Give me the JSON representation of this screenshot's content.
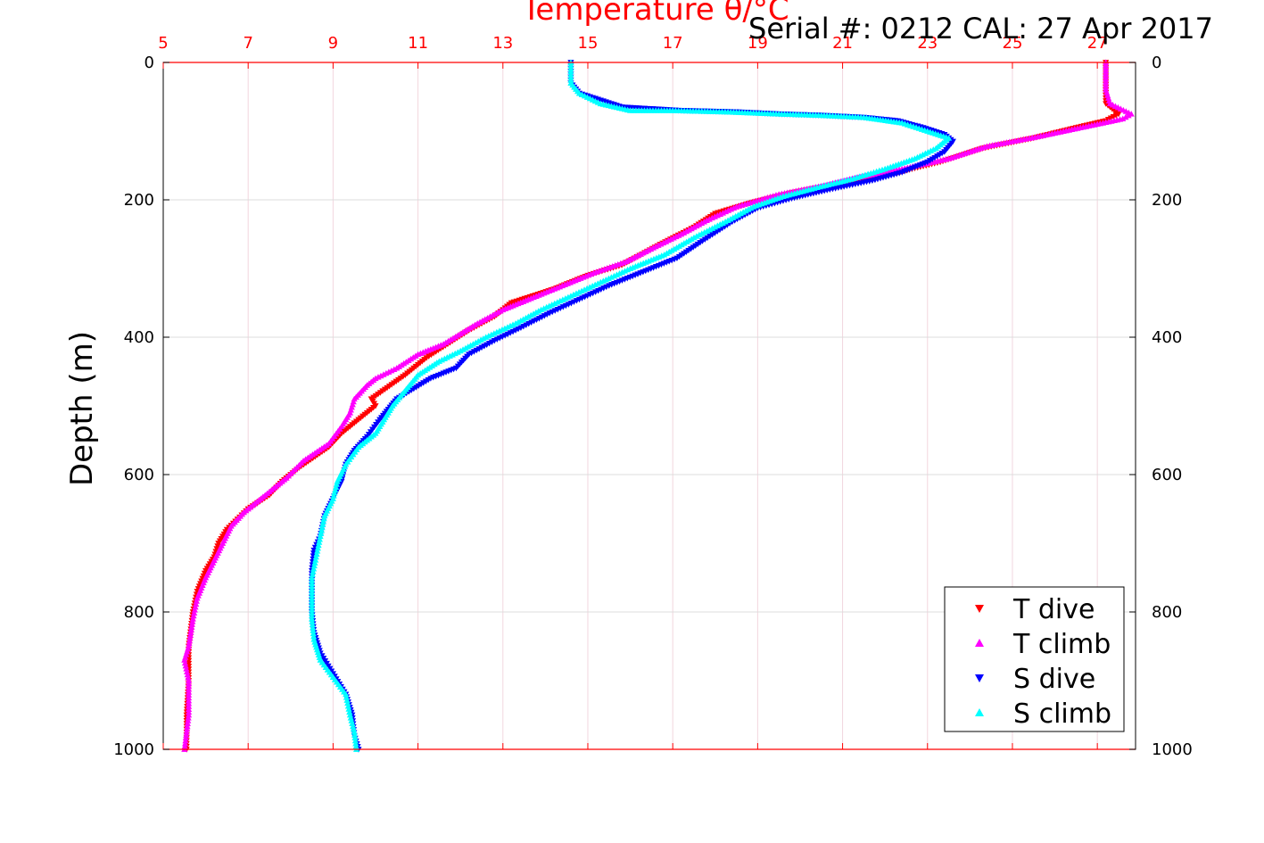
{
  "chart_data": {
    "type": "scatter",
    "title": "Temperature θ/°C",
    "annotation": "Serial #: 0212  CAL: 27 Apr 2017",
    "xlabel": "Temperature θ/°C",
    "ylabel": "Depth (m)",
    "xlim": [
      5,
      27.9
    ],
    "ylim": [
      1000,
      0
    ],
    "x_tick_labels": [
      "5",
      "7",
      "9",
      "11",
      "13",
      "15",
      "17",
      "19",
      "21",
      "23",
      "25",
      "27"
    ],
    "y_tick_labels": [
      "0",
      "200",
      "400",
      "600",
      "800",
      "1000"
    ],
    "grid": true,
    "legend_position": "bottom-right",
    "colors": {
      "temperature_axis": "#ff0000",
      "t_dive": "#ff0000",
      "t_climb": "#ff00ff",
      "s_dive": "#0000ff",
      "s_climb": "#00ffff"
    },
    "series": [
      {
        "name": "T dive",
        "marker": "triangle-down",
        "color": "#ff0000",
        "points": [
          [
            27.2,
            0
          ],
          [
            27.2,
            40
          ],
          [
            27.2,
            60
          ],
          [
            27.5,
            75
          ],
          [
            27.2,
            85
          ],
          [
            26.5,
            95
          ],
          [
            25.5,
            110
          ],
          [
            24.3,
            125
          ],
          [
            23.3,
            145
          ],
          [
            22.3,
            160
          ],
          [
            21.0,
            175
          ],
          [
            19.8,
            190
          ],
          [
            18.8,
            205
          ],
          [
            18.0,
            220
          ],
          [
            17.5,
            240
          ],
          [
            16.7,
            265
          ],
          [
            15.8,
            295
          ],
          [
            15.0,
            310
          ],
          [
            14.2,
            330
          ],
          [
            13.2,
            350
          ],
          [
            12.8,
            370
          ],
          [
            12.2,
            390
          ],
          [
            11.7,
            410
          ],
          [
            11.2,
            430
          ],
          [
            10.7,
            455
          ],
          [
            9.9,
            490
          ],
          [
            10.0,
            500
          ],
          [
            9.6,
            520
          ],
          [
            9.2,
            540
          ],
          [
            8.9,
            560
          ],
          [
            8.2,
            590
          ],
          [
            7.8,
            610
          ],
          [
            7.5,
            630
          ],
          [
            7.0,
            650
          ],
          [
            6.5,
            680
          ],
          [
            6.3,
            700
          ],
          [
            6.2,
            720
          ],
          [
            6.0,
            740
          ],
          [
            5.8,
            770
          ],
          [
            5.7,
            800
          ],
          [
            5.6,
            850
          ],
          [
            5.6,
            900
          ],
          [
            5.55,
            950
          ],
          [
            5.55,
            1000
          ]
        ]
      },
      {
        "name": "T climb",
        "marker": "triangle-up",
        "color": "#ff00ff",
        "points": [
          [
            27.2,
            0
          ],
          [
            27.2,
            40
          ],
          [
            27.3,
            60
          ],
          [
            27.8,
            75
          ],
          [
            27.6,
            82
          ],
          [
            26.6,
            95
          ],
          [
            25.6,
            108
          ],
          [
            24.4,
            122
          ],
          [
            23.5,
            140
          ],
          [
            22.4,
            155
          ],
          [
            21.3,
            168
          ],
          [
            20.5,
            180
          ],
          [
            19.5,
            192
          ],
          [
            18.5,
            210
          ],
          [
            17.8,
            230
          ],
          [
            17.2,
            250
          ],
          [
            16.6,
            268
          ],
          [
            15.9,
            290
          ],
          [
            15.2,
            305
          ],
          [
            14.4,
            325
          ],
          [
            13.6,
            345
          ],
          [
            13.0,
            360
          ],
          [
            12.4,
            380
          ],
          [
            12.0,
            395
          ],
          [
            11.6,
            410
          ],
          [
            11.0,
            425
          ],
          [
            10.5,
            445
          ],
          [
            10.0,
            460
          ],
          [
            9.8,
            470
          ],
          [
            9.5,
            490
          ],
          [
            9.4,
            510
          ],
          [
            9.2,
            530
          ],
          [
            8.9,
            555
          ],
          [
            8.3,
            580
          ],
          [
            7.9,
            605
          ],
          [
            7.4,
            630
          ],
          [
            6.9,
            655
          ],
          [
            6.6,
            675
          ],
          [
            6.4,
            700
          ],
          [
            6.2,
            725
          ],
          [
            6.0,
            750
          ],
          [
            5.8,
            780
          ],
          [
            5.7,
            810
          ],
          [
            5.6,
            850
          ],
          [
            5.5,
            870
          ],
          [
            5.6,
            900
          ],
          [
            5.6,
            950
          ],
          [
            5.5,
            1000
          ]
        ]
      },
      {
        "name": "S dive",
        "marker": "triangle-down",
        "color": "#0000ff",
        "points": [
          [
            14.6,
            0
          ],
          [
            14.6,
            30
          ],
          [
            14.8,
            45
          ],
          [
            15.8,
            65
          ],
          [
            17.2,
            70
          ],
          [
            18.5,
            72
          ],
          [
            19.5,
            75
          ],
          [
            20.5,
            77
          ],
          [
            21.5,
            80
          ],
          [
            22.3,
            85
          ],
          [
            22.9,
            95
          ],
          [
            23.4,
            105
          ],
          [
            23.6,
            115
          ],
          [
            23.4,
            130
          ],
          [
            23.0,
            145
          ],
          [
            22.4,
            160
          ],
          [
            21.7,
            172
          ],
          [
            20.7,
            185
          ],
          [
            19.8,
            198
          ],
          [
            19.0,
            212
          ],
          [
            18.4,
            232
          ],
          [
            17.7,
            260
          ],
          [
            17.1,
            285
          ],
          [
            16.3,
            305
          ],
          [
            15.5,
            325
          ],
          [
            14.8,
            345
          ],
          [
            14.1,
            365
          ],
          [
            13.3,
            390
          ],
          [
            12.8,
            405
          ],
          [
            12.2,
            425
          ],
          [
            11.9,
            445
          ],
          [
            11.3,
            460
          ],
          [
            10.9,
            475
          ],
          [
            10.5,
            490
          ],
          [
            10.3,
            505
          ],
          [
            10.1,
            520
          ],
          [
            9.8,
            545
          ],
          [
            9.5,
            565
          ],
          [
            9.3,
            585
          ],
          [
            9.2,
            610
          ],
          [
            9.0,
            635
          ],
          [
            8.8,
            660
          ],
          [
            8.7,
            690
          ],
          [
            8.55,
            710
          ],
          [
            8.5,
            740
          ],
          [
            8.5,
            770
          ],
          [
            8.5,
            800
          ],
          [
            8.55,
            830
          ],
          [
            8.7,
            860
          ],
          [
            9.0,
            890
          ],
          [
            9.3,
            920
          ],
          [
            9.45,
            950
          ],
          [
            9.5,
            980
          ],
          [
            9.6,
            1000
          ]
        ]
      },
      {
        "name": "S climb",
        "marker": "triangle-up",
        "color": "#00ffff",
        "points": [
          [
            14.6,
            0
          ],
          [
            14.6,
            30
          ],
          [
            14.8,
            45
          ],
          [
            15.3,
            60
          ],
          [
            16.0,
            70
          ],
          [
            17.0,
            70
          ],
          [
            18.3,
            72
          ],
          [
            19.5,
            75
          ],
          [
            20.5,
            77
          ],
          [
            21.5,
            80
          ],
          [
            22.4,
            88
          ],
          [
            23.0,
            100
          ],
          [
            23.5,
            110
          ],
          [
            23.2,
            125
          ],
          [
            22.7,
            140
          ],
          [
            22.0,
            155
          ],
          [
            21.2,
            170
          ],
          [
            20.4,
            182
          ],
          [
            19.6,
            195
          ],
          [
            18.9,
            210
          ],
          [
            18.3,
            230
          ],
          [
            17.5,
            255
          ],
          [
            16.8,
            280
          ],
          [
            16.0,
            300
          ],
          [
            15.3,
            320
          ],
          [
            14.6,
            340
          ],
          [
            13.9,
            360
          ],
          [
            13.3,
            380
          ],
          [
            12.6,
            400
          ],
          [
            12.0,
            420
          ],
          [
            11.5,
            435
          ],
          [
            11.0,
            455
          ],
          [
            10.8,
            470
          ],
          [
            10.6,
            485
          ],
          [
            10.4,
            500
          ],
          [
            10.2,
            520
          ],
          [
            10.0,
            540
          ],
          [
            9.6,
            560
          ],
          [
            9.3,
            585
          ],
          [
            9.1,
            610
          ],
          [
            9.0,
            635
          ],
          [
            8.8,
            660
          ],
          [
            8.7,
            690
          ],
          [
            8.6,
            720
          ],
          [
            8.5,
            750
          ],
          [
            8.5,
            780
          ],
          [
            8.5,
            810
          ],
          [
            8.55,
            840
          ],
          [
            8.7,
            870
          ],
          [
            9.0,
            895
          ],
          [
            9.3,
            920
          ],
          [
            9.4,
            950
          ],
          [
            9.5,
            975
          ],
          [
            9.55,
            1000
          ]
        ]
      }
    ]
  }
}
